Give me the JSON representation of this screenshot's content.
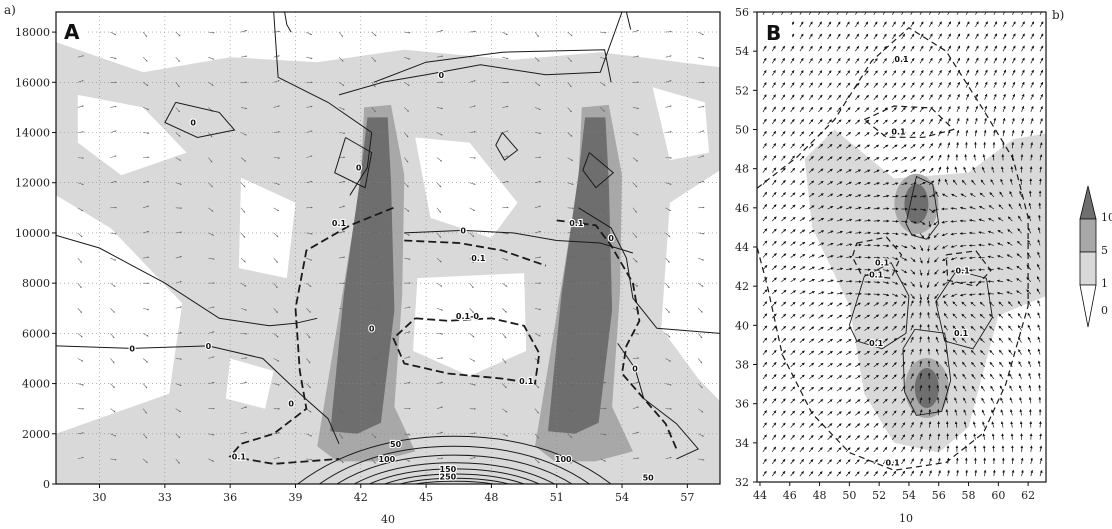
{
  "chart_data": [
    {
      "type": "heatmap",
      "panel_label": "a)",
      "panel_letter": "A",
      "xlabel": "40",
      "ylabel": "",
      "xticks": [
        "30",
        "33",
        "36",
        "39",
        "42",
        "45",
        "48",
        "51",
        "54",
        "57"
      ],
      "xlim": [
        28,
        58.5
      ],
      "yticks": [
        "0",
        "2000",
        "4000",
        "6000",
        "8000",
        "10000",
        "12000",
        "14000",
        "16000",
        "18000"
      ],
      "ylim": [
        0,
        18800
      ],
      "grid": true,
      "shade_levels": [
        "0",
        "1",
        "5",
        "10"
      ],
      "plumes": [
        {
          "x": [
            40.6,
            43.7
          ],
          "y": [
            1800,
            14600
          ]
        },
        {
          "x": [
            50.6,
            53.7
          ],
          "y": [
            1800,
            14600
          ]
        }
      ],
      "contour_labels": [
        {
          "text": "0",
          "x": 31.5,
          "y": 5400
        },
        {
          "text": "0",
          "x": 35.0,
          "y": 5500
        },
        {
          "text": "0",
          "x": 42.5,
          "y": 6200
        },
        {
          "text": "0",
          "x": 38.8,
          "y": 3200
        },
        {
          "text": "0",
          "x": 34.3,
          "y": 14400
        },
        {
          "text": "0",
          "x": 41.9,
          "y": 12600
        },
        {
          "text": "0",
          "x": 45.7,
          "y": 16300
        },
        {
          "text": "0",
          "x": 46.7,
          "y": 10100
        },
        {
          "text": "0",
          "x": 54.6,
          "y": 4600
        },
        {
          "text": "0",
          "x": 53.5,
          "y": 9800
        },
        {
          "text": "0.1",
          "x": 41.0,
          "y": 10400
        },
        {
          "text": "0.1",
          "x": 47.4,
          "y": 9000
        },
        {
          "text": "0.1",
          "x": 51.9,
          "y": 10400
        },
        {
          "text": "0.1-0",
          "x": 46.9,
          "y": 6700
        },
        {
          "text": "0.1",
          "x": 36.4,
          "y": 1100
        },
        {
          "text": "0.1",
          "x": 49.6,
          "y": 4100
        },
        {
          "text": "50",
          "x": 43.6,
          "y": 1600
        },
        {
          "text": "100",
          "x": 43.2,
          "y": 1000
        },
        {
          "text": "150",
          "x": 46.0,
          "y": 600
        },
        {
          "text": "250",
          "x": 46.0,
          "y": 300
        },
        {
          "text": "100",
          "x": 51.3,
          "y": 1000
        },
        {
          "text": "50",
          "x": 55.2,
          "y": 250
        }
      ]
    },
    {
      "type": "heatmap",
      "panel_label": "b)",
      "panel_letter": "B",
      "xlabel": "10",
      "ylabel": "",
      "xticks": [
        "44",
        "46",
        "48",
        "50",
        "52",
        "54",
        "56",
        "58",
        "60",
        "62"
      ],
      "xlim": [
        43.8,
        63.2
      ],
      "yticks": [
        "32",
        "34",
        "36",
        "38",
        "40",
        "42",
        "44",
        "46",
        "48",
        "50",
        "52",
        "54",
        "56"
      ],
      "ylim": [
        32,
        56
      ],
      "shade_levels": [
        "0",
        "1",
        "5",
        "10"
      ],
      "cores": [
        {
          "x": 54.5,
          "y": 46.2,
          "level": "10"
        },
        {
          "x": 55.2,
          "y": 36.8,
          "level": "10"
        }
      ],
      "contour_labels": [
        {
          "text": "0.1",
          "x": 53.5,
          "y": 53.6
        },
        {
          "text": "0.1",
          "x": 53.3,
          "y": 49.9
        },
        {
          "text": "0.1",
          "x": 51.8,
          "y": 42.6
        },
        {
          "text": "0.1",
          "x": 52.2,
          "y": 43.2
        },
        {
          "text": "0.1",
          "x": 57.6,
          "y": 42.8
        },
        {
          "text": "0.1",
          "x": 51.8,
          "y": 39.1
        },
        {
          "text": "0.1",
          "x": 57.5,
          "y": 39.6
        },
        {
          "text": "0.1",
          "x": 52.9,
          "y": 33.0
        }
      ]
    }
  ],
  "colorbar": {
    "labels": [
      "10",
      "5",
      "1",
      "0"
    ]
  },
  "colors": {
    "light": "#d9d9d9",
    "mid": "#a8a8a8",
    "dark": "#6e6e6e",
    "ink": "#1a1a1a"
  }
}
